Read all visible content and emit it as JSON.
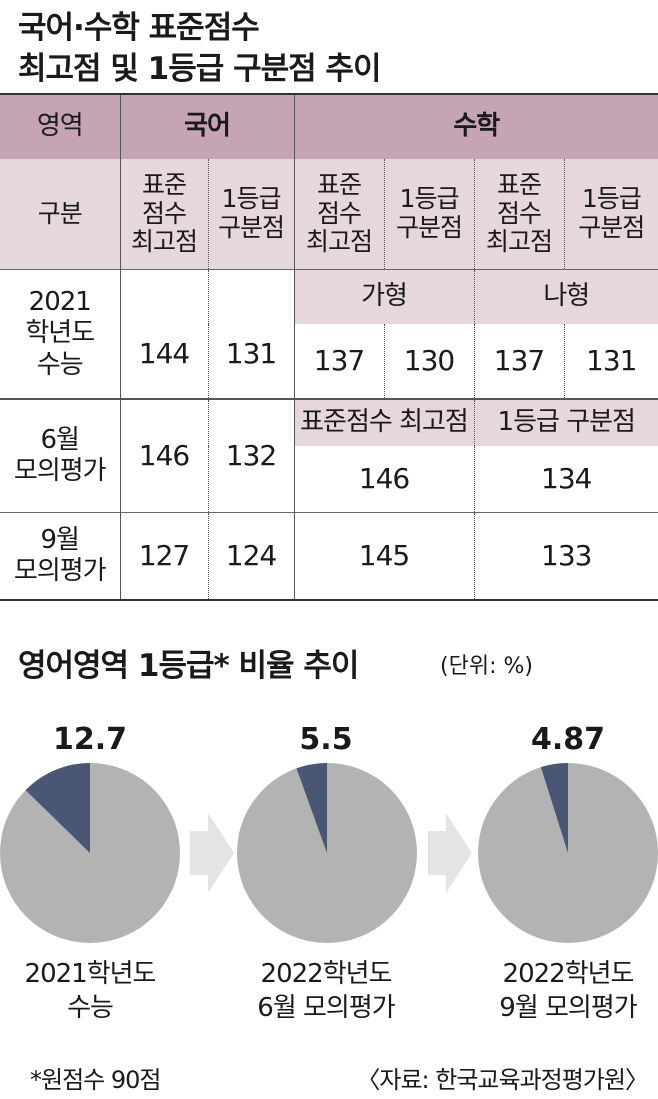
{
  "title_line1": "국어·수학 표준점수",
  "title_line2": "최고점 및 1등급 구분점 추이",
  "table": {
    "h_area": "영역",
    "h_korean": "국어",
    "h_math": "수학",
    "h_division": "구분",
    "col_std": [
      "표준",
      "점수",
      "최고점"
    ],
    "col_cut": [
      "1등급",
      "구분점"
    ],
    "rows": {
      "r2021": {
        "label": [
          "2021",
          "학년도",
          "수능"
        ],
        "ga": "가형",
        "na": "나형",
        "kor_std": "144",
        "kor_cut": "131",
        "ga_std": "137",
        "ga_cut": "130",
        "na_std": "137",
        "na_cut": "131"
      },
      "r6": {
        "label": [
          "6월",
          "모의평가"
        ],
        "sub_std": "표준점수 최고점",
        "sub_cut": "1등급 구분점",
        "kor_std": "146",
        "kor_cut": "132",
        "math_std": "146",
        "math_cut": "134"
      },
      "r9": {
        "label": [
          "9월",
          "모의평가"
        ],
        "kor_std": "127",
        "kor_cut": "124",
        "math_std": "145",
        "math_cut": "133"
      }
    }
  },
  "pie_section_title": "영어영역 1등급* 비율 추이",
  "unit": "(단위: %)",
  "footnote": "*원점수 90점",
  "source": "〈자료: 한국교육과정평가원〉",
  "colors": {
    "slice": "#4a5774",
    "rest": "#b3b3b3",
    "arrow": "#e4e4e4",
    "header": "#c4a4b5",
    "header_light": "#e6d7dd"
  },
  "chart_data": {
    "type": "pie",
    "title": "영어영역 1등급* 비율 추이",
    "unit": "(단위: %)",
    "pies": [
      {
        "value": 12.7,
        "label": "12.7",
        "caption": [
          "2021학년도",
          "수능"
        ]
      },
      {
        "value": 5.5,
        "label": "5.5",
        "caption": [
          "2022학년도",
          "6월 모의평가"
        ]
      },
      {
        "value": 4.87,
        "label": "4.87",
        "caption": [
          "2022학년도",
          "9월 모의평가"
        ]
      }
    ]
  }
}
